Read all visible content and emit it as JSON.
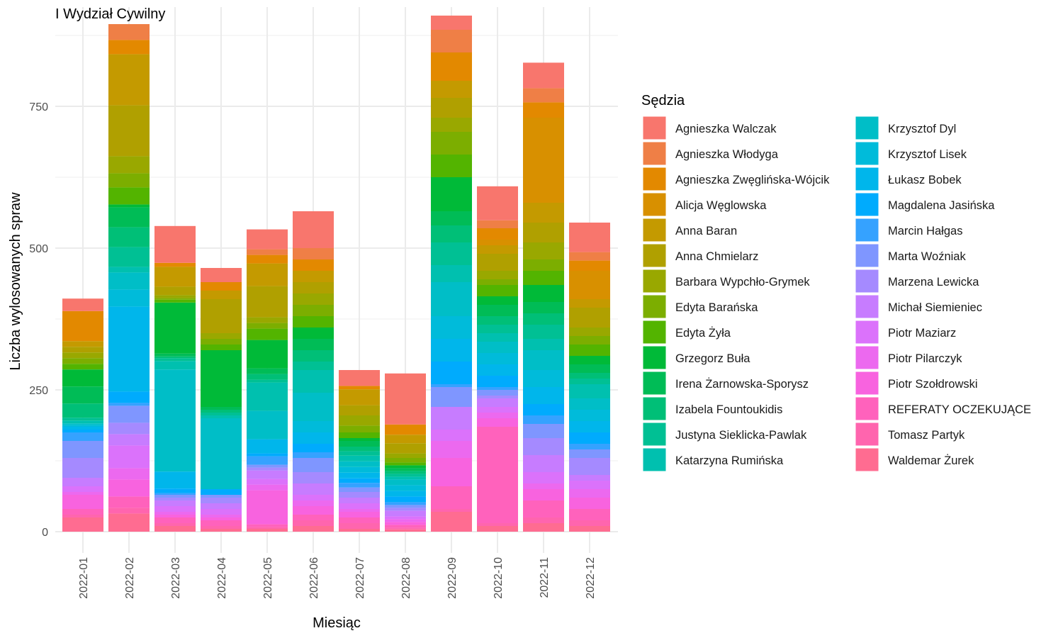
{
  "chart_data": {
    "type": "bar",
    "stacked": true,
    "title": "I Wydział Cywilny",
    "xlabel": "Miesiąc",
    "ylabel": "Liczba wylosowanych spraw",
    "ylim": [
      0,
      900
    ],
    "yticks": [
      0,
      250,
      500,
      750
    ],
    "grid": true,
    "legend_title": "Sędzia",
    "legend_position": "right",
    "categories": [
      "2022-01",
      "2022-02",
      "2022-03",
      "2022-04",
      "2022-05",
      "2022-06",
      "2022-07",
      "2022-08",
      "2022-09",
      "2022-10",
      "2022-11",
      "2022-12"
    ],
    "series": [
      {
        "name": "Agnieszka Walczak",
        "color": "#F8766D",
        "values": [
          22,
          0,
          65,
          25,
          35,
          65,
          28,
          90,
          25,
          60,
          45,
          52
        ]
      },
      {
        "name": "Agnieszka Włodyga",
        "color": "#EF7F46",
        "values": [
          0,
          28,
          0,
          0,
          10,
          20,
          0,
          0,
          40,
          14,
          25,
          15
        ]
      },
      {
        "name": "Agnieszka Zwęglińska-Wójcik",
        "color": "#E38900",
        "values": [
          53,
          25,
          7,
          15,
          15,
          20,
          6,
          18,
          50,
          20,
          27,
          18
        ]
      },
      {
        "name": "Alicja Węglowska",
        "color": "#D89000",
        "values": [
          0,
          0,
          0,
          0,
          0,
          0,
          0,
          0,
          0,
          10,
          150,
          50
        ]
      },
      {
        "name": "Anna Baran",
        "color": "#C49A00",
        "values": [
          10,
          90,
          35,
          15,
          40,
          20,
          28,
          15,
          30,
          15,
          35,
          15
        ]
      },
      {
        "name": "Anna Chmielarz",
        "color": "#B0A000",
        "values": [
          10,
          90,
          15,
          60,
          55,
          20,
          18,
          18,
          35,
          30,
          35,
          35
        ]
      },
      {
        "name": "Barbara Wypchło-Grymek",
        "color": "#99A800",
        "values": [
          10,
          30,
          5,
          10,
          10,
          20,
          18,
          8,
          25,
          15,
          30,
          15
        ]
      },
      {
        "name": "Edyta Barańska",
        "color": "#7CAE00",
        "values": [
          10,
          25,
          3,
          10,
          10,
          20,
          12,
          8,
          40,
          10,
          20,
          15
        ]
      },
      {
        "name": "Edyta Żyła",
        "color": "#53B400",
        "values": [
          10,
          30,
          5,
          10,
          20,
          20,
          10,
          5,
          40,
          20,
          25,
          20
        ]
      },
      {
        "name": "Grzegorz Buła",
        "color": "#00BA38",
        "values": [
          30,
          5,
          90,
          100,
          50,
          20,
          5,
          5,
          60,
          15,
          30,
          15
        ]
      },
      {
        "name": "Irena Żarnowska-Sporysz",
        "color": "#00BC56",
        "values": [
          30,
          35,
          5,
          5,
          10,
          20,
          10,
          5,
          25,
          20,
          20,
          15
        ]
      },
      {
        "name": "Izabela Fountoukidis",
        "color": "#00BF77",
        "values": [
          25,
          35,
          3,
          5,
          10,
          20,
          8,
          5,
          30,
          15,
          20,
          10
        ]
      },
      {
        "name": "Justyna Sieklicka-Pawlak",
        "color": "#00C094",
        "values": [
          5,
          35,
          5,
          5,
          5,
          15,
          8,
          5,
          40,
          15,
          25,
          10
        ]
      },
      {
        "name": "Katarzyna Rumińska",
        "color": "#00C0AF",
        "values": [
          5,
          10,
          15,
          5,
          50,
          40,
          10,
          5,
          30,
          15,
          20,
          25
        ]
      },
      {
        "name": "Krzysztof Dyl",
        "color": "#00BEC7",
        "values": [
          3,
          30,
          180,
          125,
          50,
          50,
          10,
          10,
          60,
          20,
          35,
          20
        ]
      },
      {
        "name": "Krzysztof Lisek",
        "color": "#00BBDA",
        "values": [
          3,
          30,
          0,
          0,
          0,
          20,
          10,
          10,
          40,
          20,
          30,
          20
        ]
      },
      {
        "name": "Łukasz Bobek",
        "color": "#00B6EB",
        "values": [
          5,
          150,
          30,
          0,
          25,
          20,
          10,
          10,
          40,
          20,
          30,
          20
        ]
      },
      {
        "name": "Magdalena Jasińska",
        "color": "#00ABFD",
        "values": [
          5,
          20,
          8,
          10,
          5,
          15,
          8,
          10,
          40,
          20,
          20,
          20
        ]
      },
      {
        "name": "Marcin Hałgas",
        "color": "#35A2FF",
        "values": [
          15,
          5,
          3,
          0,
          15,
          10,
          8,
          5,
          5,
          5,
          15,
          10
        ]
      },
      {
        "name": "Marta Woźniak",
        "color": "#7F96FF",
        "values": [
          30,
          30,
          5,
          5,
          5,
          25,
          8,
          5,
          35,
          10,
          25,
          15
        ]
      },
      {
        "name": "Marzena Lewicka",
        "color": "#A58AFF",
        "values": [
          35,
          20,
          5,
          10,
          5,
          20,
          10,
          5,
          0,
          5,
          30,
          30
        ]
      },
      {
        "name": "Michał Siemieniec",
        "color": "#C77CFF",
        "values": [
          15,
          20,
          10,
          10,
          15,
          20,
          10,
          10,
          40,
          15,
          30,
          10
        ]
      },
      {
        "name": "Piotr Maziarz",
        "color": "#DB72FB",
        "values": [
          10,
          40,
          10,
          10,
          10,
          10,
          10,
          5,
          20,
          10,
          20,
          15
        ]
      },
      {
        "name": "Piotr Pilarczyk",
        "color": "#EC69EF",
        "values": [
          5,
          20,
          5,
          5,
          10,
          10,
          5,
          5,
          30,
          10,
          10,
          15
        ]
      },
      {
        "name": "Piotr Szołdrowski",
        "color": "#F863DF",
        "values": [
          25,
          30,
          5,
          5,
          60,
          15,
          10,
          5,
          50,
          15,
          20,
          20
        ]
      },
      {
        "name": "REFERATY OCZEKUJĄCE",
        "color": "#FF62BC",
        "values": [
          10,
          20,
          10,
          10,
          5,
          10,
          10,
          5,
          40,
          170,
          30,
          20
        ]
      },
      {
        "name": "Tomasz Partyk",
        "color": "#FF65AE",
        "values": [
          5,
          10,
          5,
          5,
          3,
          10,
          10,
          3,
          5,
          5,
          10,
          10
        ]
      },
      {
        "name": "Waldemar Żurek",
        "color": "#FF6C91",
        "values": [
          25,
          32,
          10,
          5,
          5,
          10,
          5,
          4,
          35,
          10,
          15,
          10
        ]
      }
    ]
  }
}
